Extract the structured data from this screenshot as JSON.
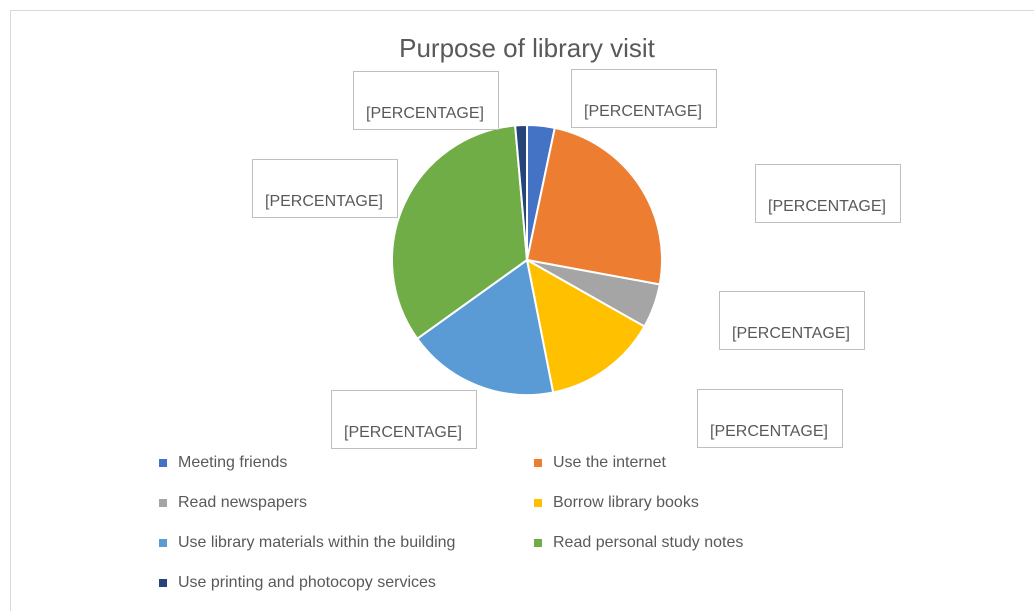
{
  "chart_data": {
    "type": "pie",
    "title": "Purpose of library visit",
    "categories": [
      "Meeting friends",
      "Use the internet",
      "Read newspapers",
      "Borrow library books",
      "Use library materials within the building",
      "Read personal study notes",
      "Use printing and photocopy  services"
    ],
    "values": [
      3.3,
      24.6,
      5.3,
      13.7,
      18.2,
      33.5,
      1.4
    ],
    "data_labels": [
      "[PERCENTAGE]",
      "[PERCENTAGE]",
      "[PERCENTAGE]",
      "[PERCENTAGE]",
      "[PERCENTAGE]",
      "[PERCENTAGE]",
      "[PERCENTAGE]"
    ],
    "colors": [
      "#4472c4",
      "#ed7d31",
      "#a5a5a5",
      "#ffc000",
      "#5b9bd5",
      "#70ad47",
      "#264478"
    ],
    "legend": "bottom"
  }
}
